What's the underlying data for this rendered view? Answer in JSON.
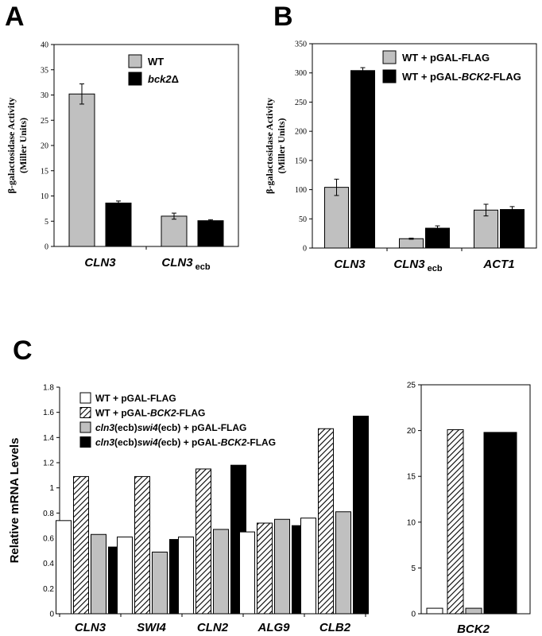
{
  "panels": {
    "a": "A",
    "b": "B",
    "c": "C"
  },
  "chart_data": [
    {
      "id": "A",
      "type": "bar",
      "ylabel_line1": "β-galactosidase Activity",
      "ylabel_line2": "(Miller Units)",
      "ylim": [
        0,
        40
      ],
      "yticks": [
        "0",
        "5",
        "10",
        "15",
        "20",
        "25",
        "30",
        "35",
        "40"
      ],
      "categories": [
        {
          "main": "CLN3",
          "sub": ""
        },
        {
          "main": "CLN3",
          "sub": "ecb"
        }
      ],
      "series": [
        {
          "name": "WT",
          "name_italic": "",
          "name_suffix": "",
          "color": "#c0c0c0",
          "values": [
            30.2,
            6.0
          ],
          "errors": [
            2.0,
            0.6
          ]
        },
        {
          "name": "",
          "name_italic": "bck2",
          "name_suffix": "Δ",
          "color": "#000000",
          "values": [
            8.6,
            5.1
          ],
          "errors": [
            0.4,
            0.2
          ]
        }
      ]
    },
    {
      "id": "B",
      "type": "bar",
      "ylabel_line1": "β-galactosidase Activity",
      "ylabel_line2": "(Miller Units)",
      "ylim": [
        0,
        350
      ],
      "yticks": [
        "0",
        "50",
        "100",
        "150",
        "200",
        "250",
        "300",
        "350"
      ],
      "categories": [
        {
          "main": "CLN3",
          "sub": ""
        },
        {
          "main": "CLN3",
          "sub": "ecb"
        },
        {
          "main": "ACT1",
          "sub": ""
        }
      ],
      "series": [
        {
          "name": "WT + pGAL-FLAG",
          "name_italic": "",
          "name_suffix": "",
          "color": "#c0c0c0",
          "values": [
            104,
            16,
            65
          ],
          "errors": [
            14,
            1,
            10
          ]
        },
        {
          "name": "WT + pGAL-",
          "name_italic": "BCK2",
          "name_suffix": "-FLAG",
          "color": "#000000",
          "values": [
            304,
            34,
            66
          ],
          "errors": [
            5,
            4,
            5
          ]
        }
      ]
    },
    {
      "id": "C-left",
      "type": "bar",
      "ylabel": "Relative mRNA Levels",
      "ylim": [
        0,
        1.8
      ],
      "yticks": [
        "0",
        "0.2",
        "0.4",
        "0.6",
        "0.8",
        "1",
        "1.2",
        "1.4",
        "1.6",
        "1.8"
      ],
      "categories": [
        "CLN3",
        "SWI4",
        "CLN2",
        "ALG9",
        "CLB2"
      ],
      "series": [
        {
          "name": "WT + pGAL-FLAG",
          "fill": "white",
          "values": [
            0.74,
            0.61,
            0.61,
            0.65,
            0.76
          ]
        },
        {
          "name": "WT + pGAL-BCK2-FLAG",
          "fill": "hatch",
          "values": [
            1.09,
            1.09,
            1.15,
            0.72,
            1.47
          ]
        },
        {
          "name": "cln3(ecb)swi4(ecb) + pGAL-FLAG",
          "fill": "gray",
          "values": [
            0.63,
            0.49,
            0.67,
            0.75,
            0.81
          ]
        },
        {
          "name": "cln3(ecb)swi4(ecb) + pGAL-BCK2-FLAG",
          "fill": "black",
          "values": [
            0.53,
            0.59,
            1.18,
            0.7,
            1.57
          ]
        }
      ],
      "legend": [
        {
          "parts": [
            [
              "WT + pGAL-FLAG",
              "n"
            ]
          ]
        },
        {
          "parts": [
            [
              "WT + pGAL-",
              "n"
            ],
            [
              "BCK2",
              "i"
            ],
            [
              "-FLAG",
              "n"
            ]
          ]
        },
        {
          "parts": [
            [
              "cln3",
              "i"
            ],
            [
              "(ecb)",
              "n"
            ],
            [
              "swi4",
              "i"
            ],
            [
              "(ecb) + pGAL-FLAG",
              "n"
            ]
          ]
        },
        {
          "parts": [
            [
              "cln3",
              "i"
            ],
            [
              "(ecb)",
              "n"
            ],
            [
              "swi4(",
              "i"
            ],
            [
              "ecb) + pGAL-",
              "n"
            ],
            [
              "BCK2",
              "i"
            ],
            [
              "-FLAG",
              "n"
            ]
          ]
        }
      ]
    },
    {
      "id": "C-right",
      "type": "bar",
      "ylim": [
        0,
        25
      ],
      "yticks": [
        "0",
        "5",
        "10",
        "15",
        "20",
        "25"
      ],
      "categories": [
        "BCK2"
      ],
      "series": [
        {
          "fill": "white",
          "values": [
            0.6
          ]
        },
        {
          "fill": "hatch",
          "values": [
            20.1
          ]
        },
        {
          "fill": "gray",
          "values": [
            0.6
          ]
        },
        {
          "fill": "black",
          "values": [
            19.8
          ]
        }
      ]
    }
  ]
}
